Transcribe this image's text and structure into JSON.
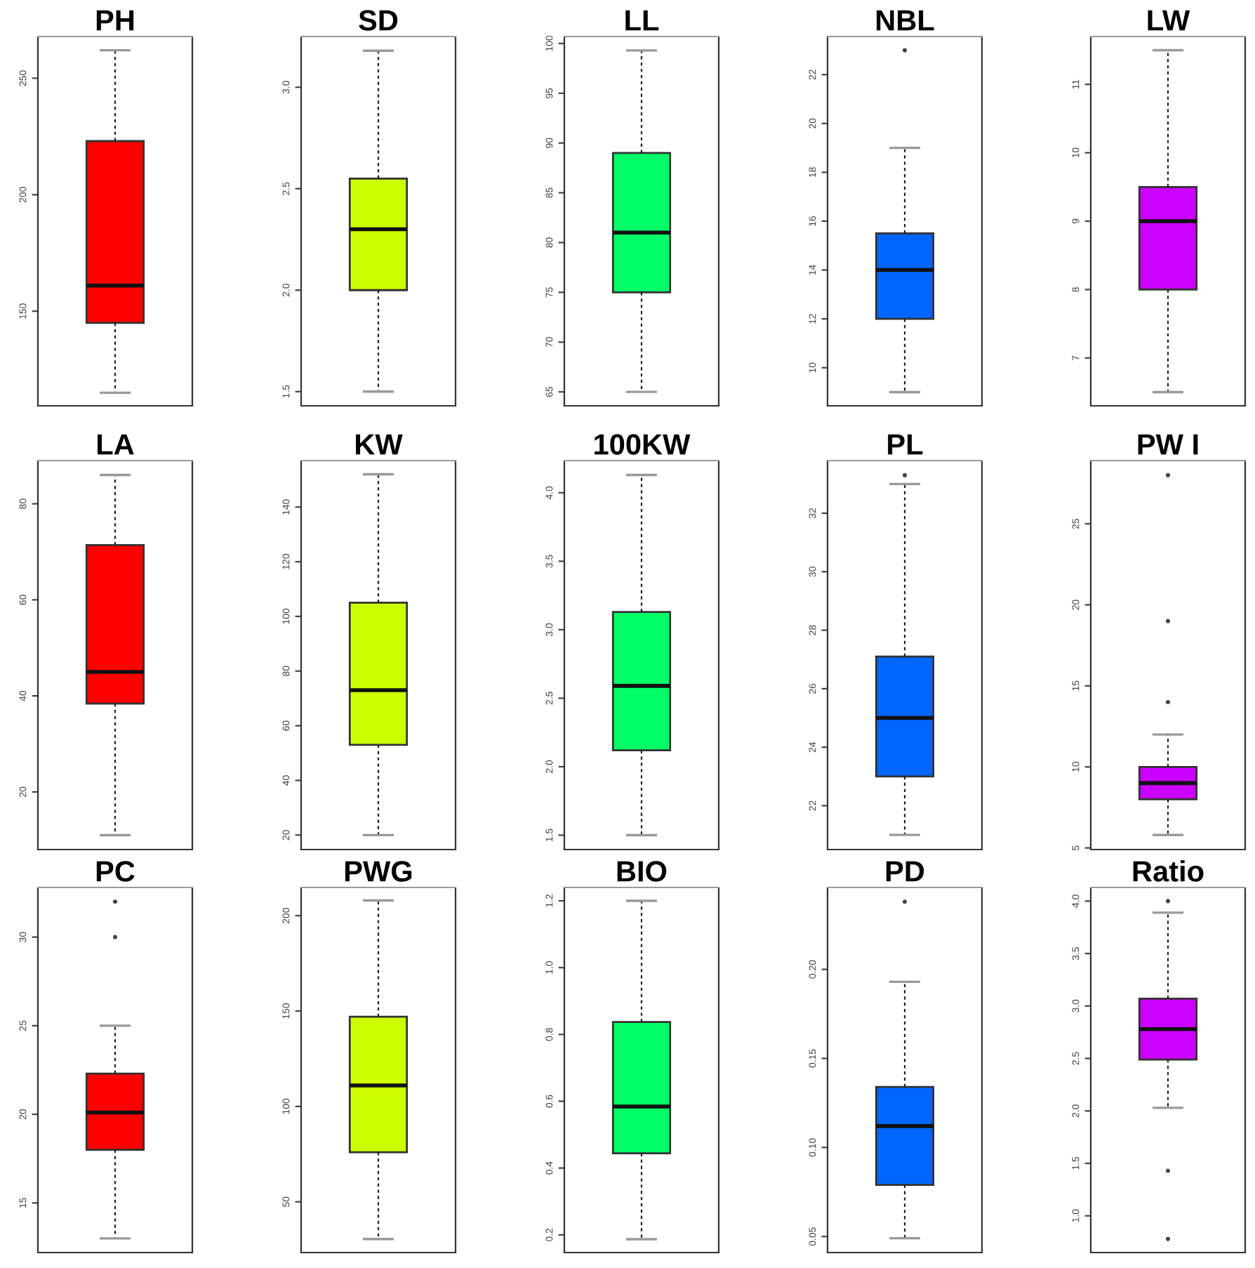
{
  "chart_data": [
    {
      "type": "box",
      "title": "PH",
      "categories": [
        null
      ],
      "color": "#ff0000",
      "tick_labels": "y",
      "ylim": [
        109.4,
        267.9
      ],
      "yticks": [
        150,
        200,
        250
      ],
      "boxes": [
        {
          "low": 115,
          "q1": 145,
          "median": 161,
          "q3": 223,
          "high": 262
        }
      ]
    },
    {
      "type": "box",
      "title": "SD",
      "categories": [
        null
      ],
      "color": "#ccff00",
      "tick_labels": "y",
      "ylim": [
        1.43,
        3.25
      ],
      "yticks": [
        {
          "value": 1.5,
          "label": "1.5"
        },
        {
          "value": 2.0,
          "label": "2.0"
        },
        {
          "value": 2.5,
          "label": "2.5"
        },
        {
          "value": 3.0,
          "label": "3.0"
        }
      ],
      "boxes": [
        {
          "low": 1.5,
          "q1": 2.0,
          "median": 2.3,
          "q3": 2.55,
          "high": 3.18
        }
      ]
    },
    {
      "type": "box",
      "title": "LL",
      "categories": [
        null
      ],
      "color": "#00ff66",
      "tick_labels": "y",
      "ylim": [
        63.6,
        100.7
      ],
      "yticks": [
        65,
        70,
        75,
        80,
        85,
        90,
        95,
        100
      ],
      "boxes": [
        {
          "low": 65,
          "q1": 75,
          "median": 81,
          "q3": 89,
          "high": 99.3
        }
      ]
    },
    {
      "type": "box",
      "title": "NBL",
      "categories": [
        null
      ],
      "color": "#0066ff",
      "tick_labels": "y",
      "ylim": [
        8.44,
        23.56
      ],
      "yticks": [
        10,
        12,
        14,
        16,
        18,
        20,
        22
      ],
      "boxes": [
        {
          "low": 9,
          "q1": 12,
          "median": 14,
          "q3": 15.5,
          "high": 19,
          "outliers": [
            23
          ]
        }
      ]
    },
    {
      "type": "box",
      "title": "LW",
      "categories": [
        null
      ],
      "color": "#cc00ff",
      "tick_labels": "y",
      "ylim": [
        6.3,
        11.7
      ],
      "yticks": [
        7,
        8,
        9,
        10,
        11
      ],
      "boxes": [
        {
          "low": 6.5,
          "q1": 8,
          "median": 9,
          "q3": 9.5,
          "high": 11.5
        }
      ]
    },
    {
      "type": "box",
      "title": "LA",
      "categories": [
        null
      ],
      "color": "#ff0000",
      "tick_labels": "y",
      "ylim": [
        8,
        89
      ],
      "yticks": [
        20,
        40,
        60,
        80
      ],
      "boxes": [
        {
          "low": 11,
          "q1": 38.4,
          "median": 45,
          "q3": 71.4,
          "high": 86
        }
      ]
    },
    {
      "type": "box",
      "title": "KW",
      "categories": [
        null
      ],
      "color": "#ccff00",
      "tick_labels": "y",
      "ylim": [
        14.7,
        157
      ],
      "yticks": [
        20,
        40,
        60,
        80,
        100,
        120,
        140
      ],
      "boxes": [
        {
          "low": 20,
          "q1": 53,
          "median": 73,
          "q3": 105,
          "high": 152
        }
      ]
    },
    {
      "type": "box",
      "title": "100KW",
      "categories": [
        null
      ],
      "color": "#00ff66",
      "tick_labels": "y",
      "ylim": [
        1.395,
        4.235
      ],
      "yticks": [
        {
          "value": 1.5,
          "label": "1.5"
        },
        {
          "value": 2.0,
          "label": "2.0"
        },
        {
          "value": 2.5,
          "label": "2.5"
        },
        {
          "value": 3.0,
          "label": "3.0"
        },
        {
          "value": 3.5,
          "label": "3.5"
        },
        {
          "value": 4.0,
          "label": "4.0"
        }
      ],
      "boxes": [
        {
          "low": 1.5,
          "q1": 2.12,
          "median": 2.59,
          "q3": 3.13,
          "high": 4.13
        }
      ]
    },
    {
      "type": "box",
      "title": "PL",
      "categories": [
        null
      ],
      "color": "#0066ff",
      "tick_labels": "y",
      "ylim": [
        20.5,
        33.8
      ],
      "yticks": [
        22,
        24,
        26,
        28,
        30,
        32
      ],
      "boxes": [
        {
          "low": 21,
          "q1": 23,
          "median": 25,
          "q3": 27.1,
          "high": 33,
          "outliers": [
            33.3
          ]
        }
      ]
    },
    {
      "type": "box",
      "title": "PW I",
      "categories": [
        null
      ],
      "color": "#cc00ff",
      "tick_labels": "y",
      "ylim": [
        4.9,
        28.9
      ],
      "yticks": [
        5,
        10,
        15,
        20,
        25
      ],
      "boxes": [
        {
          "low": 5.8,
          "q1": 8,
          "median": 9,
          "q3": 10,
          "high": 12,
          "outliers": [
            14,
            19,
            28
          ]
        }
      ]
    },
    {
      "type": "box",
      "title": "PC",
      "categories": [
        null
      ],
      "color": "#ff0000",
      "tick_labels": "y",
      "ylim": [
        12.2,
        32.8
      ],
      "yticks": [
        15,
        20,
        25,
        30
      ],
      "boxes": [
        {
          "low": 13,
          "q1": 18,
          "median": 20.1,
          "q3": 22.3,
          "high": 25,
          "outliers": [
            30,
            32
          ]
        }
      ]
    },
    {
      "type": "box",
      "title": "PWG",
      "categories": [
        null
      ],
      "color": "#ccff00",
      "tick_labels": "y",
      "ylim": [
        23.4,
        214.8
      ],
      "yticks": [
        50,
        100,
        150,
        200
      ],
      "boxes": [
        {
          "low": 30.5,
          "q1": 76,
          "median": 111,
          "q3": 147,
          "high": 208
        }
      ]
    },
    {
      "type": "box",
      "title": "BIO",
      "categories": [
        null
      ],
      "color": "#00ff66",
      "tick_labels": "y",
      "ylim": [
        0.147,
        1.24
      ],
      "yticks": [
        0.2,
        0.4,
        0.6,
        0.8,
        {
          "value": 1.0,
          "label": "1.0"
        },
        1.2
      ],
      "boxes": [
        {
          "low": 0.187,
          "q1": 0.444,
          "median": 0.584,
          "q3": 0.837,
          "high": 1.2
        }
      ]
    },
    {
      "type": "box",
      "title": "PD",
      "categories": [
        null
      ],
      "color": "#0066ff",
      "tick_labels": "y",
      "ylim": [
        0.041,
        0.246
      ],
      "yticks": [
        0.05,
        {
          "value": 0.1,
          "label": "0.10"
        },
        0.15,
        {
          "value": 0.2,
          "label": "0.20"
        }
      ],
      "boxes": [
        {
          "low": 0.049,
          "q1": 0.079,
          "median": 0.112,
          "q3": 0.134,
          "high": 0.193,
          "outliers": [
            0.238
          ]
        }
      ]
    },
    {
      "type": "box",
      "title": "Ratio",
      "categories": [
        null
      ],
      "color": "#cc00ff",
      "tick_labels": "y",
      "ylim": [
        0.65,
        4.13
      ],
      "yticks": [
        {
          "value": 1.0,
          "label": "1.0"
        },
        1.5,
        {
          "value": 2.0,
          "label": "2.0"
        },
        2.5,
        {
          "value": 3.0,
          "label": "3.0"
        },
        3.5,
        {
          "value": 4.0,
          "label": "4.0"
        }
      ],
      "boxes": [
        {
          "low": 2.03,
          "q1": 2.49,
          "median": 2.78,
          "q3": 3.07,
          "high": 3.89,
          "outliers": [
            0.78,
            1.43,
            4.0
          ]
        }
      ]
    }
  ]
}
